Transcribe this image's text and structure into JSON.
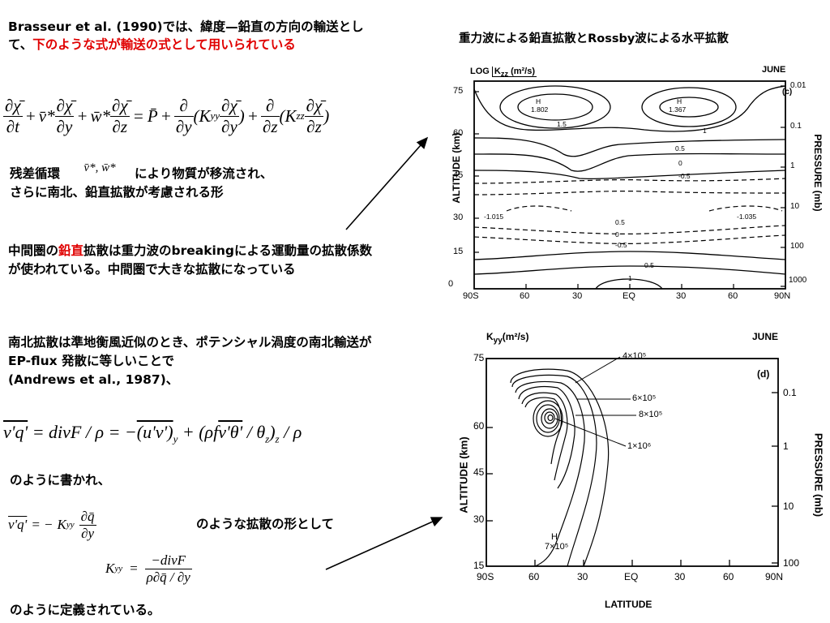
{
  "left": {
    "intro_black": "Brasseur et al. (1990)では、緯度—鉛直の方向の輸送として、",
    "intro_red": "下のような式が輸送の式として用いられている",
    "eq1": {
      "t1_num": "∂χ̄",
      "t1_den": "∂t",
      "t2_coef": "v̄*",
      "t2_num": "∂χ̄",
      "t2_den": "∂y",
      "t3_coef": "w̄*",
      "t3_num": "∂χ̄",
      "t3_den": "∂z",
      "rhs_p": "P̄",
      "t4_op_num": "∂",
      "t4_op_den": "∂y",
      "t4_k": "K",
      "t4_sub": "yy",
      "t4_num": "∂χ̄",
      "t4_den": "∂y",
      "t5_op_num": "∂",
      "t5_op_den": "∂z",
      "t5_k": "K",
      "t5_sub": "zz",
      "t5_num": "∂χ̄",
      "t5_den": "∂z"
    },
    "residual_label": "残差循環",
    "residual_vars": "v̄*, w̄*",
    "residual_text1": "により物質が移流され、",
    "residual_text2": "さらに南北、鉛直拡散が考慮される形",
    "meso_pre": "中間圏の",
    "meso_red": "鉛直",
    "meso_post": "拡散は重力波のbreakingによる運動量の拡散係数が使われている。中間圏で大きな拡散になっている",
    "merid_text": "南北拡散は準地衡風近似のとき、ポテンシャル渦度の南北輸送がEP-flux 発散に等しいことで",
    "merid_ref": "(Andrews et al., 1987)、",
    "eq2": {
      "lhs": "v'q'",
      "div": "divF",
      "rho": "ρ",
      "uv": "(u'v')",
      "uv_sub": "y",
      "vt": "v'θ'",
      "theta_sub": "z",
      "f": "f"
    },
    "written_as": "のように書かれ、",
    "eq3": {
      "lhs": "v'q'",
      "k": "K",
      "k_sub": "yy",
      "num": "∂q̄",
      "den": "∂y"
    },
    "diff_form": "のような拡散の形として",
    "eq4": {
      "k": "K",
      "k_sub": "yy",
      "num": "−divF",
      "den": "ρ∂q̄ / ∂y"
    },
    "defined_as": "のように定義されている。"
  },
  "fig_title": "重力波による鉛直拡散とRossby波による水平拡散",
  "fig1": {
    "title_pre": "LOG",
    "title_var": "K",
    "title_sub": "zz",
    "title_units": "(m²/s)",
    "month": "JUNE",
    "panel": "(c)",
    "ylabel": "ALTITUDE (km)",
    "y2label": "PRESSURE (mb)",
    "yticks": [
      "0",
      "15",
      "30",
      "45",
      "60",
      "75"
    ],
    "xticks": [
      "90S",
      "60",
      "30",
      "EQ",
      "30",
      "60",
      "90N"
    ],
    "pticks": [
      "0.01",
      "0.1",
      "1",
      "10",
      "100",
      "1000"
    ],
    "labels": [
      "H",
      "1.802",
      "H",
      "1.367",
      "1.5",
      "1",
      "0.5",
      "0",
      "-0.5",
      "-1.015",
      "-1.035",
      "0.5",
      "0",
      "-0.5",
      "0.5",
      "1"
    ]
  },
  "fig2": {
    "title_var": "K",
    "title_sub": "yy",
    "title_units": "(m²/s)",
    "month": "JUNE",
    "panel": "(d)",
    "ylabel": "ALTITUDE (km)",
    "y2label": "PRESSURE (mb)",
    "xlabel": "LATITUDE",
    "yticks": [
      "15",
      "30",
      "45",
      "60",
      "75"
    ],
    "xticks": [
      "90S",
      "60",
      "30",
      "EQ",
      "30",
      "60",
      "90N"
    ],
    "pticks": [
      "0.1",
      "1",
      "10",
      "100"
    ],
    "labels": [
      "4×10⁵",
      "6×10⁵",
      "8×10⁵",
      "1×10⁶",
      "H",
      "7×10⁵"
    ]
  }
}
